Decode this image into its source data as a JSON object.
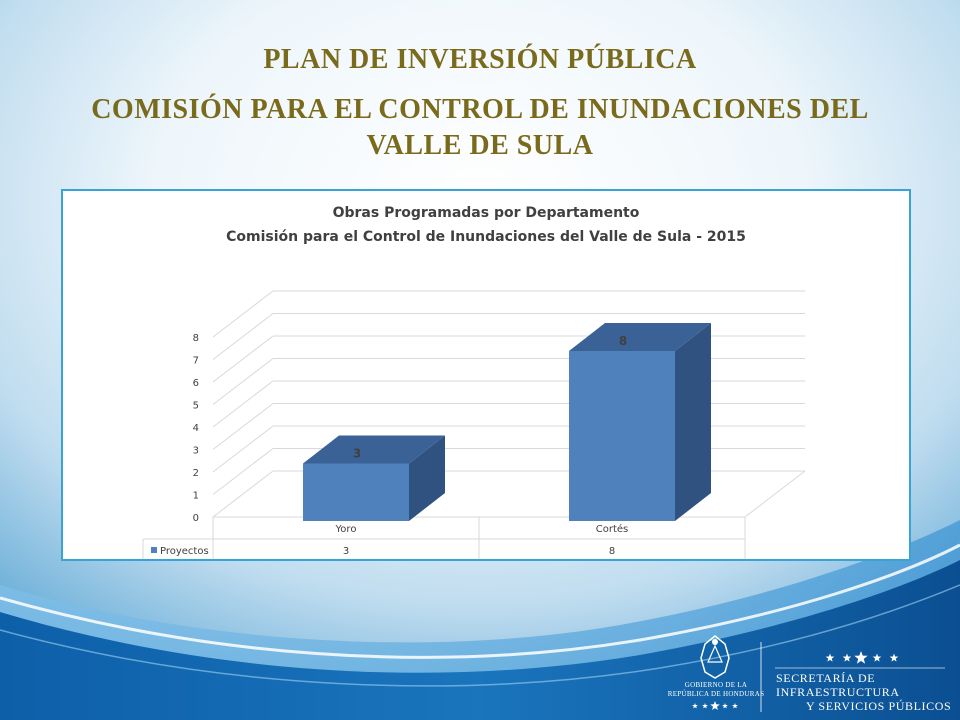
{
  "slide": {
    "title_line1": "PLAN DE INVERSIÓN PÚBLICA",
    "title_line2": "COMISIÓN PARA EL CONTROL DE INUNDACIONES DEL",
    "title_line3": "VALLE DE SULA"
  },
  "chart_data": {
    "type": "bar",
    "title": "Obras Programadas por Departamento",
    "subtitle": "Comisión para el Control de Inundaciones del Valle de Sula - 2015",
    "categories": [
      "Yoro",
      "Cortés"
    ],
    "series": [
      {
        "name": "Proyectos",
        "values": [
          3,
          8
        ]
      }
    ],
    "data_labels": [
      "3",
      "8"
    ],
    "yticks": [
      "0",
      "1",
      "2",
      "3",
      "4",
      "5",
      "6",
      "7",
      "8"
    ],
    "ylim": [
      0,
      8
    ],
    "grid": true,
    "three_d": true,
    "data_table": true,
    "colors": {
      "bar_front": "#4f81bd",
      "bar_side": "#2f5280",
      "bar_top": "#3a6296"
    }
  },
  "footer": {
    "gov_line1": "GOBIERNO DE LA",
    "gov_line2": "REPÚBLICA DE HONDURAS",
    "secretaria_line1": "SECRETARÍA DE INFRAESTRUCTURA",
    "secretaria_line2": "Y SERVICIOS PÚBLICOS",
    "icons": [
      "star-icon",
      "coat-of-arms-icon"
    ]
  }
}
